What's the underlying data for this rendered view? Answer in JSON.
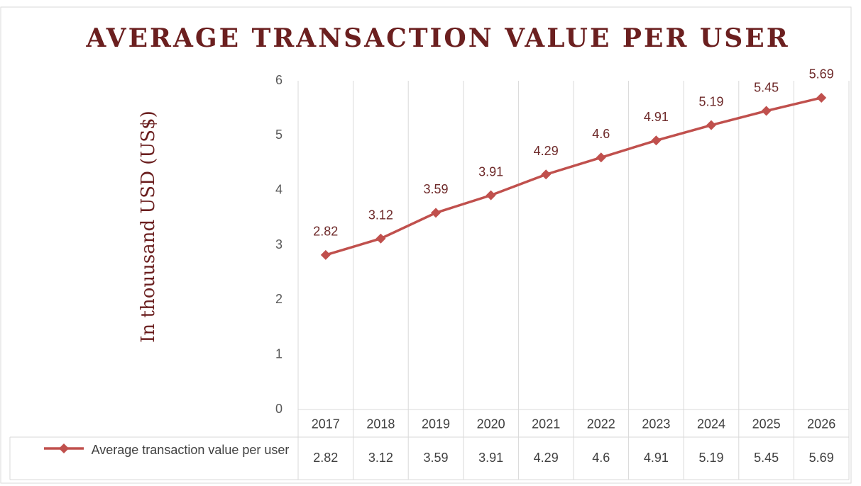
{
  "chart_data": {
    "type": "line",
    "title": "AVERAGE TRANSACTION VALUE PER USER",
    "y_label": "In thouusand USD (US$)",
    "categories": [
      "2017",
      "2018",
      "2019",
      "2020",
      "2021",
      "2022",
      "2023",
      "2024",
      "2025",
      "2026"
    ],
    "series": [
      {
        "name": "Average transaction value per user",
        "color": "#c0504d",
        "values": [
          2.82,
          3.12,
          3.59,
          3.91,
          4.29,
          4.6,
          4.91,
          5.19,
          5.45,
          5.69
        ]
      }
    ],
    "ylim": [
      0,
      6
    ],
    "yticks": [
      0,
      1,
      2,
      3,
      4,
      5,
      6
    ],
    "grid": true,
    "data_labels": true,
    "data_table": true
  }
}
